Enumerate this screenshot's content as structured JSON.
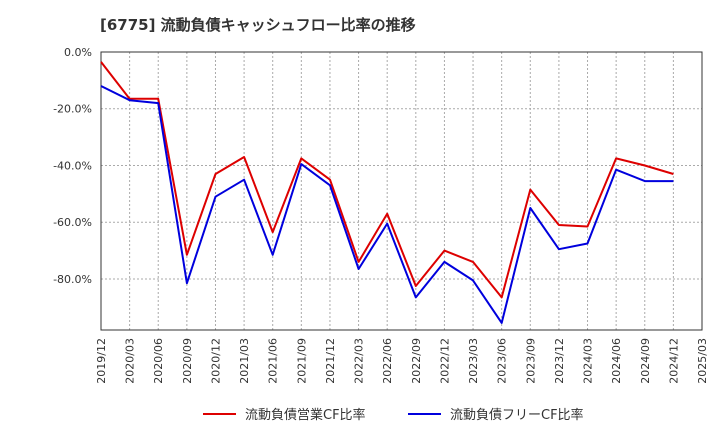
{
  "chart_data": {
    "type": "line",
    "title": "[6775]  流動負債キャッシュフロー比率の推移",
    "xlabel": "",
    "ylabel": "",
    "x": [
      "2019/12",
      "2020/03",
      "2020/06",
      "2020/09",
      "2020/12",
      "2021/03",
      "2021/06",
      "2021/09",
      "2021/12",
      "2022/03",
      "2022/06",
      "2022/09",
      "2022/12",
      "2023/03",
      "2023/06",
      "2023/09",
      "2023/12",
      "2024/03",
      "2024/06",
      "2024/09",
      "2024/12",
      "2025/03"
    ],
    "ylim": [
      -98,
      0
    ],
    "yticks": [
      0,
      -20,
      -40,
      -60,
      -80
    ],
    "ytick_labels": [
      "0.0%",
      "-20.0%",
      "-40.0%",
      "-60.0%",
      "-80.0%"
    ],
    "grid": true,
    "legend": "bottom",
    "series": [
      {
        "name": "流動負債営業CF比率",
        "color": "#dd0000",
        "values": [
          -3.5,
          -16.5,
          -16.5,
          -71.5,
          -43,
          -37,
          -63.5,
          -37.5,
          -45,
          -74,
          -57,
          -82.5,
          -70,
          -74,
          -86.5,
          -48.5,
          -61,
          -61.5,
          -37.5,
          -40,
          -43,
          null
        ]
      },
      {
        "name": "流動負債フリーCF比率",
        "color": "#0000dd",
        "values": [
          -12,
          -17,
          -18,
          -81.5,
          -51,
          -45,
          -71.5,
          -39.5,
          -47,
          -76.5,
          -60.5,
          -86.5,
          -74,
          -80.5,
          -95.5,
          -55,
          -69.5,
          -67.5,
          -41.5,
          -45.5,
          -45.5,
          null
        ]
      }
    ]
  }
}
